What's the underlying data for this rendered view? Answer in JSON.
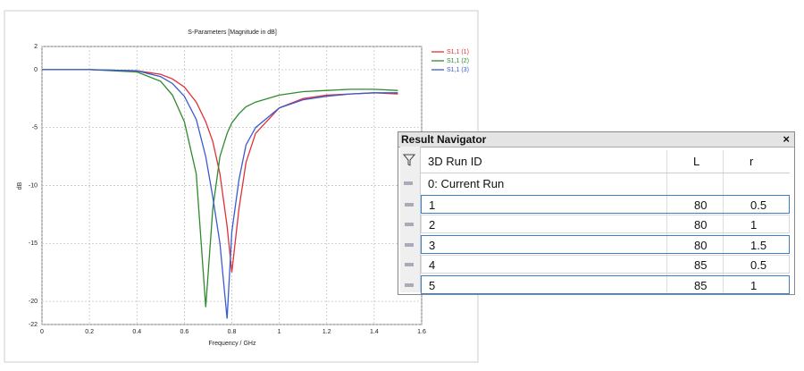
{
  "chart_data": {
    "type": "line",
    "title": "S-Parameters [Magnitude in dB]",
    "xlabel": "Frequency / GHz",
    "ylabel": "dB",
    "x": [
      0,
      0.2,
      0.4,
      0.5,
      0.55,
      0.6,
      0.65,
      0.69,
      0.72,
      0.75,
      0.78,
      0.8,
      0.83,
      0.86,
      0.9,
      1.0,
      1.1,
      1.2,
      1.3,
      1.4,
      1.5
    ],
    "series": [
      {
        "name": "S1,1 (1)",
        "color": "#e0303a",
        "values": [
          0,
          0,
          -0.1,
          -0.4,
          -0.8,
          -1.5,
          -2.8,
          -4.5,
          -6.2,
          -9,
          -13.5,
          -17.5,
          -12,
          -8,
          -5.5,
          -3.3,
          -2.5,
          -2.2,
          -2.1,
          -2.0,
          -2.1
        ]
      },
      {
        "name": "S1,1 (2)",
        "color": "#2e8b2e",
        "values": [
          0,
          0,
          -0.2,
          -1,
          -2.2,
          -4.5,
          -9,
          -20.5,
          -12,
          -7.5,
          -5.5,
          -4.6,
          -3.8,
          -3.2,
          -2.8,
          -2.2,
          -1.9,
          -1.8,
          -1.7,
          -1.7,
          -1.8
        ]
      },
      {
        "name": "S1,1 (3)",
        "color": "#3a5bd0",
        "values": [
          0,
          0,
          -0.1,
          -0.6,
          -1.2,
          -2.3,
          -4.3,
          -7.5,
          -11,
          -15,
          -21.5,
          -14,
          -9.5,
          -6.5,
          -5,
          -3.3,
          -2.6,
          -2.3,
          -2.1,
          -2,
          -2.0
        ]
      }
    ],
    "xlim": [
      0,
      1.6
    ],
    "xticks": [
      0,
      0.2,
      0.4,
      0.6,
      0.8,
      1,
      1.2,
      1.4,
      1.6
    ],
    "ylim": [
      -22,
      2
    ],
    "yticks": [
      2,
      0,
      -5,
      -10,
      -15,
      -20,
      -22
    ],
    "grid": true
  },
  "navigator": {
    "title": "Result Navigator",
    "close": "×",
    "columns": [
      "3D Run ID",
      "L",
      "r"
    ],
    "rows": [
      {
        "id": "0: Current Run"
      },
      {
        "id": "1",
        "L": 80,
        "r": 0.5
      },
      {
        "id": "2",
        "L": 80,
        "r": 1
      },
      {
        "id": "3",
        "L": 80,
        "r": 1.5
      },
      {
        "id": "4",
        "L": 85,
        "r": 0.5
      },
      {
        "id": "5",
        "L": 85,
        "r": 1
      }
    ]
  }
}
